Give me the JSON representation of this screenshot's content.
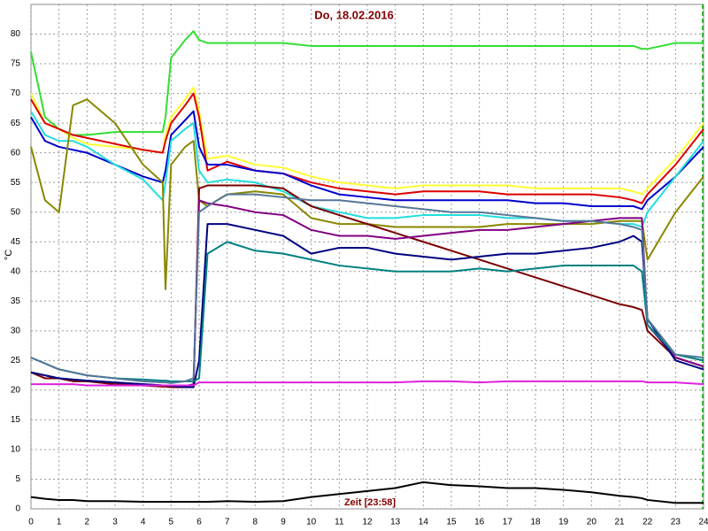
{
  "chart_data": {
    "type": "line",
    "title": "Do, 18.02.2016",
    "y_label": "°C",
    "x_label": "Zeit [23:58]",
    "x": [
      0,
      0.5,
      1,
      1.5,
      2,
      3,
      4,
      4.7,
      4.8,
      5,
      5.5,
      5.8,
      6,
      6.3,
      7,
      8,
      9,
      10,
      11,
      12,
      13,
      14,
      15,
      16,
      17,
      18,
      19,
      20,
      21,
      21.5,
      21.8,
      22,
      23,
      24
    ],
    "xlim": [
      0,
      24
    ],
    "xticks": [
      0,
      1,
      2,
      3,
      4,
      5,
      6,
      7,
      8,
      9,
      10,
      11,
      12,
      13,
      14,
      15,
      16,
      17,
      18,
      19,
      20,
      21,
      22,
      23,
      24
    ],
    "ylim": [
      0,
      85
    ],
    "yticks": [
      0,
      5,
      10,
      15,
      20,
      25,
      30,
      35,
      40,
      45,
      50,
      55,
      60,
      65,
      70,
      75,
      80
    ],
    "grid": true,
    "series": [
      {
        "color": "#33dd33",
        "values": [
          77,
          66,
          64,
          63,
          63,
          63.5,
          63.5,
          63.5,
          66,
          76,
          79,
          80.5,
          79,
          78.5,
          78.5,
          78.5,
          78.5,
          78,
          78,
          78,
          78,
          78,
          78,
          78,
          78,
          78,
          78,
          78,
          78,
          78,
          77.5,
          77.5,
          78.5,
          78.5
        ]
      },
      {
        "color": "#ffff33",
        "values": [
          70,
          65,
          64,
          62.5,
          61.5,
          61,
          60.5,
          60,
          63,
          66,
          69,
          71,
          67,
          59,
          59.5,
          58,
          57.5,
          56,
          55,
          54.5,
          54,
          54.5,
          54.5,
          54.5,
          54.5,
          54,
          54,
          54,
          54,
          53.5,
          53,
          54,
          59,
          65
        ]
      },
      {
        "color": "#dd0000",
        "values": [
          69,
          65,
          64,
          63,
          62.5,
          61.5,
          60.5,
          60,
          62,
          65,
          68,
          70,
          66,
          57,
          58.5,
          57,
          56.5,
          55,
          54,
          53.5,
          53,
          53.5,
          53.5,
          53.5,
          53,
          53,
          53,
          53,
          52.5,
          52,
          51.5,
          53,
          58,
          64
        ]
      },
      {
        "color": "#0000cc",
        "values": [
          66,
          62,
          61,
          60.5,
          60,
          58,
          56,
          55,
          57,
          63,
          65.5,
          67,
          61,
          58,
          58,
          57,
          56.5,
          54.5,
          53,
          52.5,
          52,
          52,
          52,
          52,
          52,
          51.5,
          51.5,
          51,
          51,
          51,
          50.5,
          52,
          56,
          61
        ]
      },
      {
        "color": "#22dddd",
        "values": [
          67,
          63,
          62,
          62,
          61,
          58,
          55.5,
          52,
          55,
          62,
          64,
          65,
          57,
          55,
          55.5,
          55,
          53.5,
          51,
          50,
          49,
          49,
          49.5,
          49.5,
          49.5,
          49,
          49,
          48.5,
          48.5,
          48,
          48,
          47.5,
          50,
          56,
          62
        ]
      },
      {
        "color": "#888800",
        "values": [
          61,
          52,
          50,
          68,
          69,
          65,
          58,
          55,
          37,
          58,
          61,
          62,
          52,
          51,
          53,
          53.5,
          53,
          49,
          48,
          48,
          47.5,
          47.5,
          47.5,
          47.5,
          48,
          48,
          48,
          48,
          48.5,
          48.5,
          48.5,
          42,
          50,
          56
        ]
      },
      {
        "color": "#7a0000",
        "values": [
          23,
          22,
          22,
          21.5,
          21.5,
          21,
          20.8,
          20.6,
          20.6,
          20.5,
          20.5,
          20.5,
          54,
          54.5,
          54.5,
          54.5,
          54,
          51,
          49.5,
          48,
          46.5,
          45,
          43.5,
          42,
          40.5,
          39,
          37.5,
          36,
          34.5,
          34,
          33.5,
          30,
          25.5,
          24
        ]
      },
      {
        "color": "#800080",
        "values": [
          23,
          22.5,
          22,
          21.8,
          21.6,
          21.3,
          21,
          20.8,
          20.8,
          20.7,
          20.7,
          21,
          52,
          51.5,
          51,
          50,
          49.5,
          47,
          46,
          46,
          45.5,
          46,
          46.5,
          47,
          47,
          47.5,
          48,
          48.5,
          49,
          49,
          49,
          31,
          25.5,
          24
        ]
      },
      {
        "color": "#000080",
        "values": [
          23,
          22.5,
          22,
          21.8,
          21.6,
          21.3,
          21,
          20.8,
          20.8,
          20.7,
          20.5,
          20.5,
          25,
          48,
          48,
          47,
          46,
          43,
          44,
          44,
          43,
          42.5,
          42,
          42.5,
          43,
          43,
          43.5,
          44,
          45,
          46,
          45,
          32,
          25,
          23.5
        ]
      },
      {
        "color": "#008080",
        "values": [
          25.5,
          24.5,
          23.5,
          23,
          22.5,
          22,
          21.8,
          21.6,
          21.6,
          21.5,
          21.5,
          21.5,
          22,
          43,
          45,
          43.5,
          43,
          42,
          41,
          40.5,
          40,
          40,
          40,
          40.5,
          40,
          40.5,
          41,
          41,
          41,
          41,
          40,
          31,
          26,
          25
        ]
      },
      {
        "color": "#557799",
        "values": [
          25.5,
          24.5,
          23.5,
          23,
          22.5,
          22,
          21.5,
          21.3,
          21.3,
          21.2,
          21.5,
          22,
          50,
          51,
          53,
          53,
          52.5,
          52,
          52,
          51.5,
          51,
          50.5,
          50,
          50,
          49.5,
          49,
          48.5,
          48.5,
          48,
          47.5,
          47,
          32,
          26,
          25.5
        ]
      },
      {
        "color": "#dd22dd",
        "values": [
          21,
          21,
          21,
          21,
          20.8,
          20.8,
          20.8,
          20.8,
          20.8,
          20.8,
          20.8,
          20.8,
          21.3,
          21.3,
          21.3,
          21.3,
          21.3,
          21.3,
          21.3,
          21.3,
          21.3,
          21.5,
          21.5,
          21.3,
          21.5,
          21.5,
          21.5,
          21.5,
          21.5,
          21.5,
          21.5,
          21.3,
          21.3,
          21
        ]
      },
      {
        "color": "#000000",
        "values": [
          2,
          1.7,
          1.5,
          1.5,
          1.3,
          1.3,
          1.2,
          1.2,
          1.2,
          1.2,
          1.2,
          1.2,
          1.2,
          1.2,
          1.3,
          1.2,
          1.3,
          2,
          2.5,
          3,
          3.5,
          4.5,
          4,
          3.8,
          3.5,
          3.5,
          3.2,
          2.8,
          2.2,
          2,
          1.8,
          1.5,
          1,
          1
        ]
      }
    ]
  }
}
